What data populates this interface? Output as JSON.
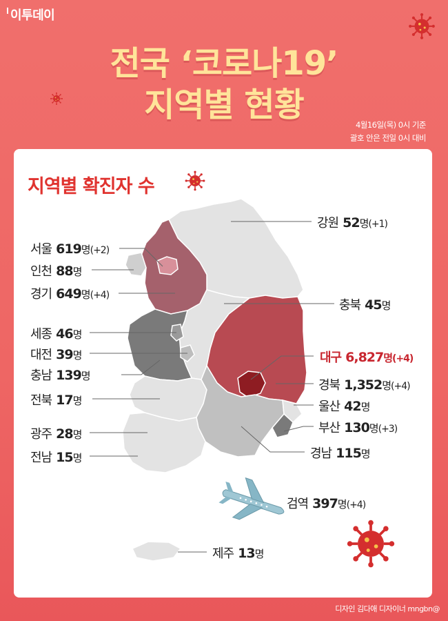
{
  "header": {
    "logo": "이투데이",
    "title_line1": "전국 ‘코로나19’",
    "title_line2": "지역별 현황",
    "basis_line1": "4월16일(목) 0시 기준",
    "basis_line2": "괄호 안은 전일 0시 대비"
  },
  "section_title": "지역별 확진자 수",
  "regions": [
    {
      "name": "강원",
      "count": "52",
      "unit": "명",
      "change": "(+1)"
    },
    {
      "name": "서울",
      "count": "619",
      "unit": "명",
      "change": "(+2)"
    },
    {
      "name": "인천",
      "count": "88",
      "unit": "명",
      "change": ""
    },
    {
      "name": "경기",
      "count": "649",
      "unit": "명",
      "change": "(+4)"
    },
    {
      "name": "충북",
      "count": "45",
      "unit": "명",
      "change": ""
    },
    {
      "name": "세종",
      "count": "46",
      "unit": "명",
      "change": ""
    },
    {
      "name": "대전",
      "count": "39",
      "unit": "명",
      "change": ""
    },
    {
      "name": "대구",
      "count": "6,827",
      "unit": "명",
      "change": "(+4)"
    },
    {
      "name": "충남",
      "count": "139",
      "unit": "명",
      "change": ""
    },
    {
      "name": "경북",
      "count": "1,352",
      "unit": "명",
      "change": "(+4)"
    },
    {
      "name": "전북",
      "count": "17",
      "unit": "명",
      "change": ""
    },
    {
      "name": "울산",
      "count": "42",
      "unit": "명",
      "change": ""
    },
    {
      "name": "부산",
      "count": "130",
      "unit": "명",
      "change": "(+3)"
    },
    {
      "name": "광주",
      "count": "28",
      "unit": "명",
      "change": ""
    },
    {
      "name": "경남",
      "count": "115",
      "unit": "명",
      "change": ""
    },
    {
      "name": "전남",
      "count": "15",
      "unit": "명",
      "change": ""
    },
    {
      "name": "검역",
      "count": "397",
      "unit": "명",
      "change": "(+4)"
    },
    {
      "name": "제주",
      "count": "13",
      "unit": "명",
      "change": ""
    }
  ],
  "colors": {
    "background": "#ee6664",
    "title": "#ffe49a",
    "accent": "#e0332f",
    "region_light": "#e3e3e3",
    "region_mid": "#c0c0c0",
    "region_dark": "#7a7a7a",
    "seoul_area": "#a5616c",
    "gyeongbuk": "#b84a52",
    "daegu": "#8e1c22"
  },
  "icons": [
    "virus-icon",
    "airplane-icon"
  ],
  "credit": "디자인 김다애 디자이너 mngbn@"
}
